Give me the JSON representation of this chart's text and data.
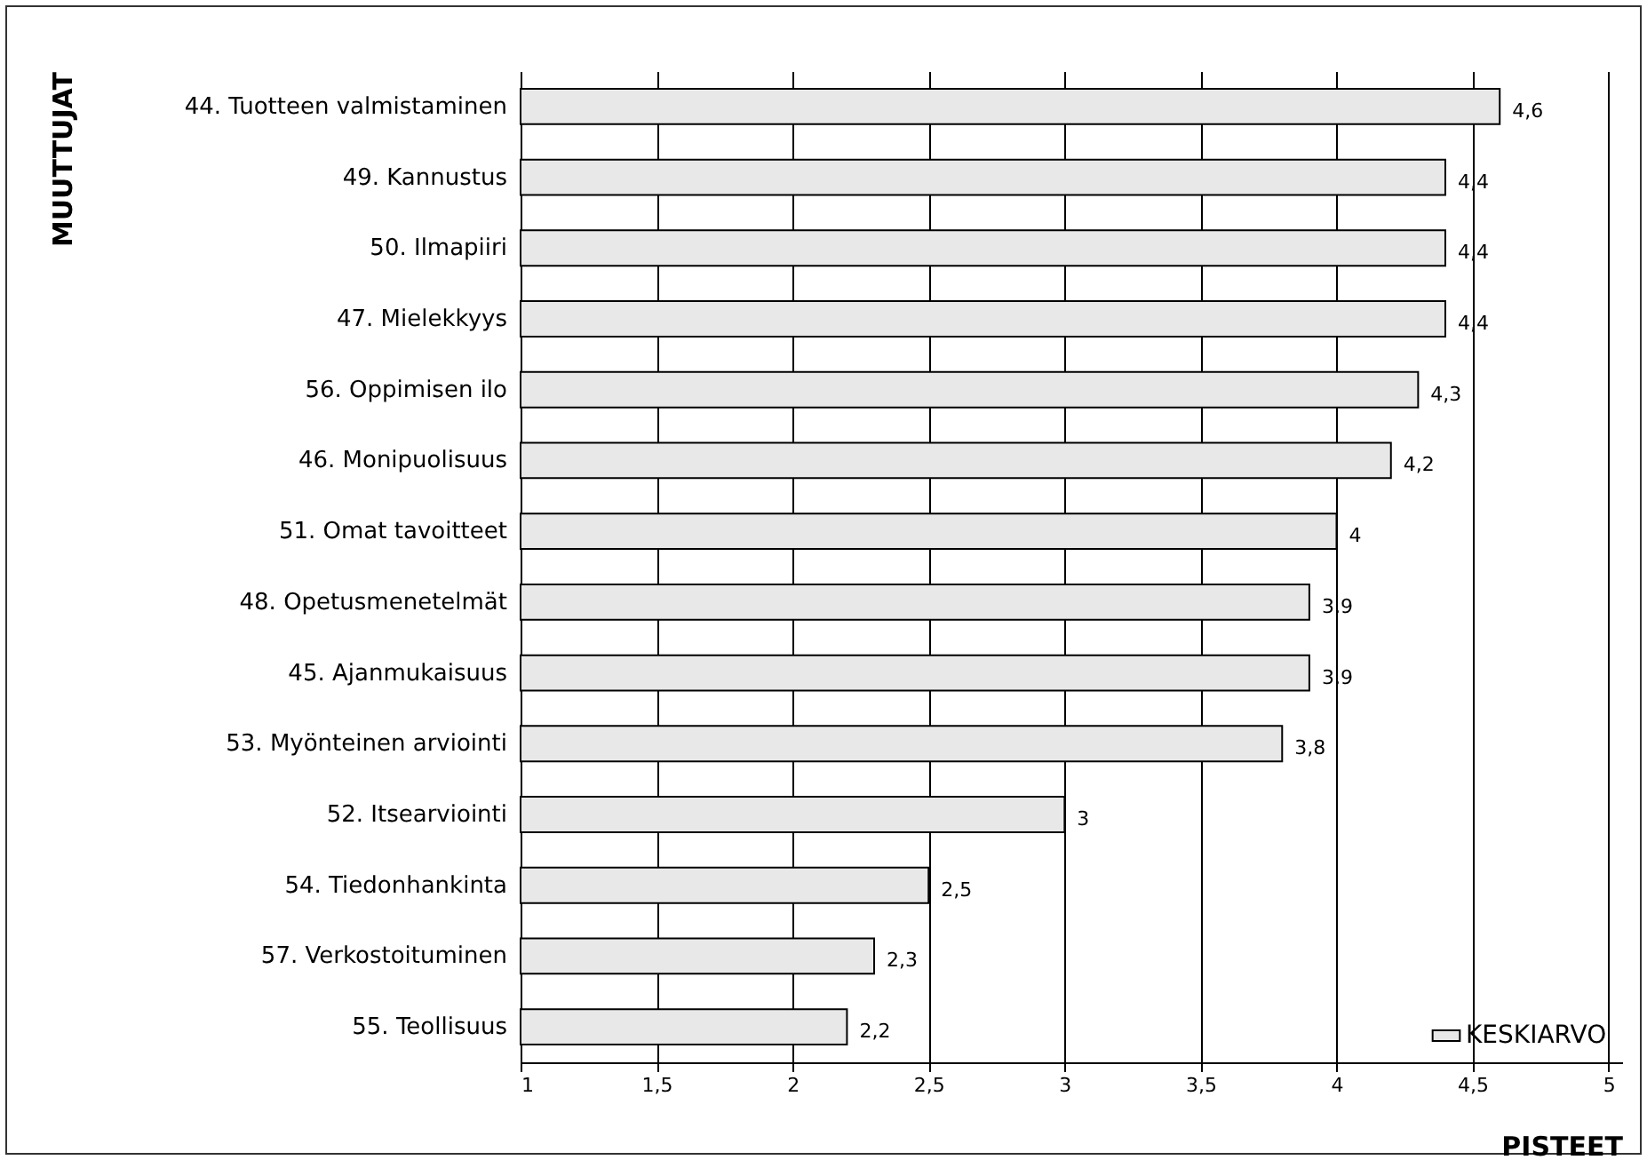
{
  "chart_data": {
    "type": "bar",
    "orientation": "horizontal",
    "xlabel": "PISTEET",
    "ylabel": "MUUTTUJAT",
    "categories": [
      "44. Tuotteen valmistaminen",
      "49. Kannustus",
      "50. Ilmapiiri",
      "47. Mielekkyys",
      "56. Oppimisen ilo",
      "46. Monipuolisuus",
      "51. Omat tavoitteet",
      "48. Opetusmenetelmät",
      "45. Ajanmukaisuus",
      "53. Myönteinen arviointi",
      "52. Itsearviointi",
      "54. Tiedonhankinta",
      "57. Verkostoituminen",
      "55. Teollisuus"
    ],
    "series": [
      {
        "name": "KESKIARVO",
        "color": "#e8e8e8",
        "values": [
          4.6,
          4.4,
          4.4,
          4.4,
          4.3,
          4.2,
          4,
          3.9,
          3.9,
          3.8,
          3,
          2.5,
          2.3,
          2.2
        ],
        "value_labels": [
          "4,6",
          "4,4",
          "4,4",
          "4,4",
          "4,3",
          "4,2",
          "4",
          "3,9",
          "3,9",
          "3,8",
          "3",
          "2,5",
          "2,3",
          "2,2"
        ]
      }
    ],
    "xlim": [
      1,
      5.05
    ],
    "xticks": [
      1,
      {
        "value": 1.5,
        "label": "1,5"
      },
      2,
      {
        "value": 2.5,
        "label": "2,5"
      },
      3,
      {
        "value": 3.5,
        "label": "3,5"
      },
      4,
      {
        "value": 4.5,
        "label": "4,5"
      },
      5
    ],
    "grid": "x",
    "legend": "bottom right"
  }
}
